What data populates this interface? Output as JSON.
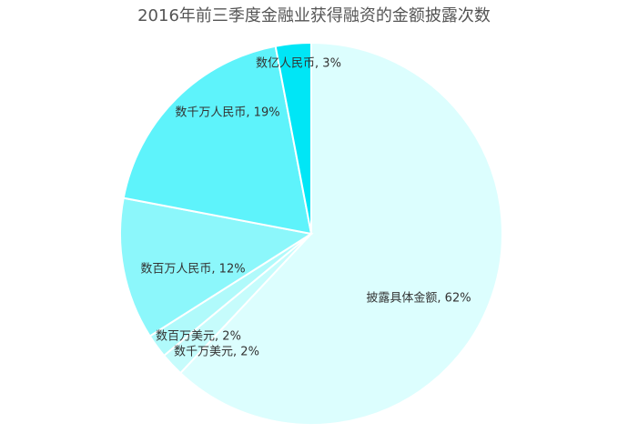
{
  "chart_data": {
    "type": "pie",
    "title": "2016年前三季度金融业获得融资的金额披露次数",
    "labels": [
      "披露具体金额, 62%",
      "数百万美元, 2%",
      "数千万美元, 2%",
      "数百万人民币, 12%",
      "数千万人民币, 19%",
      "数亿人民币, 3%"
    ],
    "values": [
      62,
      2,
      2,
      12,
      19,
      3
    ],
    "colors": [
      "#dcfefe",
      "#c6fcfc",
      "#b0fafb",
      "#8cf7fb",
      "#5ef3fb",
      "#00e6f6"
    ]
  }
}
